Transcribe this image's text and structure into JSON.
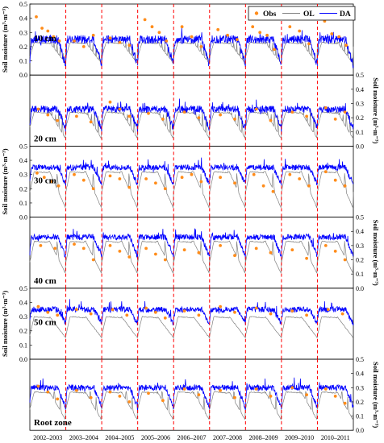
{
  "chart_data": {
    "type": "line",
    "legend": {
      "placement": "top-right",
      "entries": [
        {
          "name": "Obs",
          "color": "#ff8c1a",
          "style": "points"
        },
        {
          "name": "OL",
          "color": "#808080",
          "style": "line"
        },
        {
          "name": "DA",
          "color": "#0000ff",
          "style": "line"
        }
      ]
    },
    "years": [
      "2002–2003",
      "2003–2004",
      "2004–2005",
      "2005–2006",
      "2006–2007",
      "2007–2008",
      "2008–2009",
      "2009–2010",
      "2010–2011"
    ],
    "ylim": [
      0,
      0.5
    ],
    "yticks": [
      "0.0",
      "0.1",
      "0.2",
      "0.3",
      "0.4",
      "0.5"
    ],
    "ylabel": "Soil moisture (m³·m⁻³)",
    "separator_color": "#ff0000",
    "panels": [
      {
        "label": "10 cm",
        "axis_side": "left",
        "da_base": 0.25,
        "da_drop": 0.18,
        "da_noise": 0.03,
        "ol_base": 0.23,
        "ol_min": 0.08,
        "ol_spikes": 6,
        "obs": [
          [
            0,
            0.41
          ],
          [
            0,
            0.33
          ],
          [
            0,
            0.31
          ],
          [
            0,
            0.27
          ],
          [
            0,
            0.24
          ],
          [
            1,
            0.24
          ],
          [
            1,
            0.2
          ],
          [
            1,
            0.28
          ],
          [
            2,
            0.26
          ],
          [
            2,
            0.23
          ],
          [
            2,
            0.21
          ],
          [
            3,
            0.39
          ],
          [
            3,
            0.34
          ],
          [
            3,
            0.3
          ],
          [
            3,
            0.24
          ],
          [
            4,
            0.34
          ],
          [
            4,
            0.27
          ],
          [
            4,
            0.2
          ],
          [
            5,
            0.32
          ],
          [
            5,
            0.28
          ],
          [
            5,
            0.25
          ],
          [
            6,
            0.34
          ],
          [
            6,
            0.3
          ],
          [
            6,
            0.28
          ],
          [
            6,
            0.18
          ],
          [
            7,
            0.34
          ],
          [
            7,
            0.31
          ],
          [
            7,
            0.22
          ],
          [
            8,
            0.38
          ],
          [
            8,
            0.29
          ],
          [
            8,
            0.27
          ],
          [
            8,
            0.21
          ]
        ]
      },
      {
        "label": "20 cm",
        "axis_side": "right",
        "da_base": 0.26,
        "da_drop": 0.14,
        "da_noise": 0.025,
        "ol_base": 0.24,
        "ol_min": 0.05,
        "ol_spikes": 5,
        "obs": [
          [
            0,
            0.26
          ],
          [
            0,
            0.22
          ],
          [
            0,
            0.18
          ],
          [
            1,
            0.21
          ],
          [
            1,
            0.17
          ],
          [
            2,
            0.31
          ],
          [
            2,
            0.26
          ],
          [
            2,
            0.21
          ],
          [
            3,
            0.23
          ],
          [
            3,
            0.19
          ],
          [
            4,
            0.24
          ],
          [
            4,
            0.2
          ],
          [
            5,
            0.22
          ],
          [
            5,
            0.19
          ],
          [
            6,
            0.26
          ],
          [
            6,
            0.18
          ],
          [
            7,
            0.24
          ],
          [
            7,
            0.21
          ],
          [
            8,
            0.27
          ],
          [
            8,
            0.19
          ],
          [
            8,
            0.24
          ]
        ]
      },
      {
        "label": "30 cm",
        "axis_side": "left",
        "da_base": 0.35,
        "da_drop": 0.12,
        "da_noise": 0.02,
        "ol_base": 0.32,
        "ol_min": 0.06,
        "ol_spikes": 2,
        "obs": [
          [
            0,
            0.31
          ],
          [
            0,
            0.28
          ],
          [
            0,
            0.25
          ],
          [
            0,
            0.22
          ],
          [
            1,
            0.3
          ],
          [
            1,
            0.26
          ],
          [
            1,
            0.2
          ],
          [
            2,
            0.29
          ],
          [
            2,
            0.27
          ],
          [
            2,
            0.21
          ],
          [
            3,
            0.27
          ],
          [
            3,
            0.24
          ],
          [
            3,
            0.2
          ],
          [
            4,
            0.28
          ],
          [
            4,
            0.3
          ],
          [
            4,
            0.25
          ],
          [
            5,
            0.28
          ],
          [
            5,
            0.24
          ],
          [
            6,
            0.3
          ],
          [
            6,
            0.22
          ],
          [
            6,
            0.18
          ],
          [
            7,
            0.3
          ],
          [
            7,
            0.27
          ],
          [
            7,
            0.22
          ],
          [
            8,
            0.32
          ],
          [
            8,
            0.26
          ],
          [
            8,
            0.22
          ]
        ]
      },
      {
        "label": "40 cm",
        "axis_side": "right",
        "da_base": 0.36,
        "da_drop": 0.14,
        "da_noise": 0.02,
        "ol_base": 0.33,
        "ol_min": 0.1,
        "ol_spikes": 2,
        "obs": [
          [
            0,
            0.3
          ],
          [
            0,
            0.28
          ],
          [
            1,
            0.31
          ],
          [
            1,
            0.28
          ],
          [
            1,
            0.2
          ],
          [
            2,
            0.3
          ],
          [
            2,
            0.26
          ],
          [
            2,
            0.22
          ],
          [
            3,
            0.28
          ],
          [
            3,
            0.24
          ],
          [
            3,
            0.2
          ],
          [
            4,
            0.27
          ],
          [
            4,
            0.25
          ],
          [
            5,
            0.3
          ],
          [
            5,
            0.23
          ],
          [
            6,
            0.28
          ],
          [
            6,
            0.25
          ],
          [
            7,
            0.27
          ],
          [
            7,
            0.21
          ],
          [
            8,
            0.3
          ],
          [
            8,
            0.26
          ],
          [
            8,
            0.2
          ]
        ]
      },
      {
        "label": "50 cm",
        "axis_side": "left",
        "da_base": 0.35,
        "da_drop": 0.1,
        "da_noise": 0.02,
        "ol_base": 0.3,
        "ol_min": 0.15,
        "ol_spikes": 1,
        "obs": [
          [
            0,
            0.37
          ],
          [
            0,
            0.33
          ],
          [
            0,
            0.31
          ],
          [
            1,
            0.35
          ],
          [
            1,
            0.32
          ],
          [
            2,
            0.35
          ],
          [
            2,
            0.31
          ],
          [
            3,
            0.36
          ],
          [
            3,
            0.33
          ],
          [
            3,
            0.29
          ],
          [
            4,
            0.34
          ],
          [
            4,
            0.31
          ],
          [
            5,
            0.37
          ],
          [
            5,
            0.33
          ],
          [
            6,
            0.36
          ],
          [
            6,
            0.32
          ],
          [
            7,
            0.34
          ],
          [
            7,
            0.31
          ],
          [
            8,
            0.35
          ],
          [
            8,
            0.32
          ]
        ]
      },
      {
        "label": "Root  zone",
        "axis_side": "right",
        "da_base": 0.3,
        "da_drop": 0.14,
        "da_noise": 0.02,
        "ol_base": 0.27,
        "ol_min": 0.07,
        "ol_spikes": 3,
        "obs": [
          [
            0,
            0.31
          ],
          [
            0,
            0.27
          ],
          [
            0,
            0.22
          ],
          [
            1,
            0.28
          ],
          [
            1,
            0.23
          ],
          [
            2,
            0.27
          ],
          [
            2,
            0.24
          ],
          [
            2,
            0.2
          ],
          [
            3,
            0.26
          ],
          [
            3,
            0.21
          ],
          [
            4,
            0.29
          ],
          [
            4,
            0.25
          ],
          [
            5,
            0.28
          ],
          [
            5,
            0.23
          ],
          [
            6,
            0.29
          ],
          [
            6,
            0.24
          ],
          [
            7,
            0.3
          ],
          [
            7,
            0.25
          ],
          [
            8,
            0.29
          ],
          [
            8,
            0.24
          ],
          [
            8,
            0.19
          ]
        ]
      }
    ]
  }
}
